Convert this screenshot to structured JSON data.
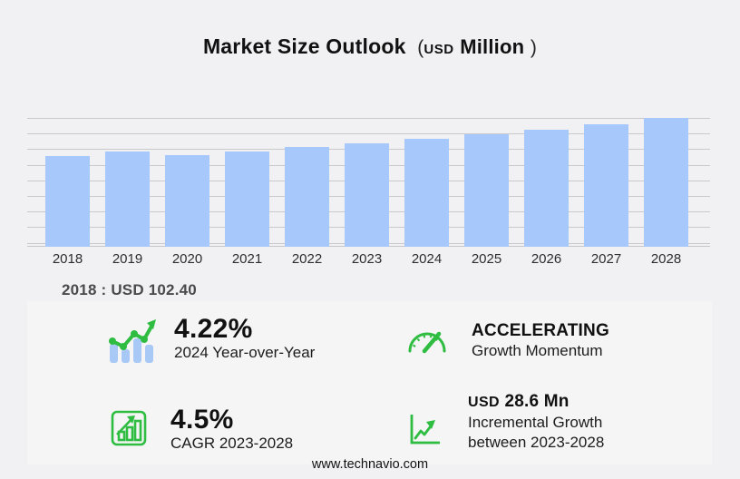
{
  "title": {
    "main": "Market Size Outlook",
    "open_paren": "(",
    "unit_small": "USD",
    "unit": "Million",
    "close_paren": ")"
  },
  "chart_data": {
    "type": "bar",
    "title": "Market Size Outlook (USD Million)",
    "unit": "USD Million",
    "categories": [
      "2018",
      "2019",
      "2020",
      "2021",
      "2022",
      "2023",
      "2024",
      "2025",
      "2026",
      "2027",
      "2028"
    ],
    "values": [
      102.4,
      107.0,
      103.3,
      107.2,
      111.9,
      116.4,
      121.3,
      126.5,
      131.9,
      137.5,
      145.0
    ],
    "ylim": [
      0,
      153
    ],
    "grid": true,
    "legend": false,
    "bar_color": "#a6c8fb",
    "gridline_color": "#c9c9cb"
  },
  "annotation": {
    "text": "2018 : USD  102.40"
  },
  "stats": [
    {
      "id": "yoy",
      "icon": "bar-line-growth-icon",
      "value": "4.22%",
      "label": "2024 Year-over-Year"
    },
    {
      "id": "momentum",
      "icon": "speedometer-icon",
      "value": "ACCELERATING",
      "label": "Growth Momentum"
    },
    {
      "id": "cagr",
      "icon": "bar-chart-growth-icon",
      "value": "4.5%",
      "label": "CAGR 2023-2028"
    },
    {
      "id": "incremental",
      "icon": "line-growth-axes-icon",
      "value_prefix": "USD",
      "value": "28.6 Mn",
      "label": "Incremental Growth",
      "label2": "between 2023-2028"
    }
  ],
  "footer": {
    "url": "www.technavio.com"
  },
  "colors": {
    "background": "#f1f1f3",
    "panel": "#f5f5f6",
    "bar": "#a6c8fb",
    "accent_green": "#2ebd41",
    "gridline": "#c9c9cb",
    "annotation_text": "#4a4a4a"
  }
}
